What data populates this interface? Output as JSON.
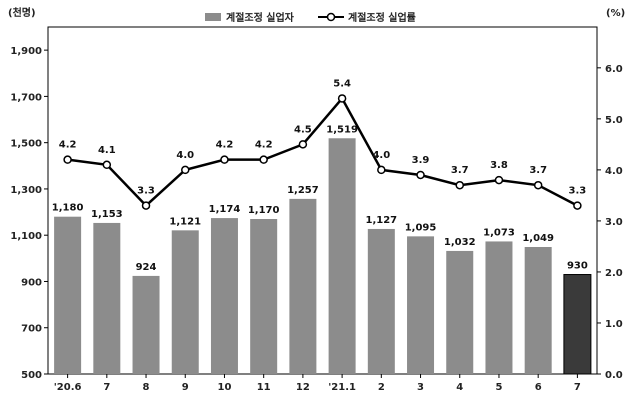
{
  "chart_data": {
    "type": "bar",
    "categories": [
      "'20.6",
      "7",
      "8",
      "9",
      "10",
      "11",
      "12",
      "'21.1",
      "2",
      "3",
      "4",
      "5",
      "6",
      "7"
    ],
    "series": [
      {
        "name": "계절조정 실업자",
        "type": "bar",
        "axis": "left",
        "values": [
          1180,
          1153,
          924,
          1121,
          1174,
          1170,
          1257,
          1519,
          1127,
          1095,
          1032,
          1073,
          1049,
          930
        ],
        "labels": [
          "1,180",
          "1,153",
          "924",
          "1,121",
          "1,174",
          "1,170",
          "1,257",
          "1,519",
          "1,127",
          "1,095",
          "1,032",
          "1,073",
          "1,049",
          "930"
        ],
        "color": "#8c8c8c",
        "highlight_color": "#3a3a3a",
        "highlight_index": 13
      },
      {
        "name": "계절조정 실업률",
        "type": "line",
        "axis": "right",
        "values": [
          4.2,
          4.1,
          3.3,
          4.0,
          4.2,
          4.2,
          4.5,
          5.4,
          4.0,
          3.9,
          3.7,
          3.8,
          3.7,
          3.3
        ],
        "labels": [
          "4.2",
          "4.1",
          "3.3",
          "4.0",
          "4.2",
          "4.2",
          "4.5",
          "5.4",
          "4.0",
          "3.9",
          "3.7",
          "3.8",
          "3.7",
          "3.3"
        ],
        "color": "#000000"
      }
    ],
    "y_left": {
      "unit": "(천명)",
      "ylim": [
        500,
        2000
      ],
      "ticks": [
        500,
        700,
        900,
        1100,
        1300,
        1500,
        1700,
        1900
      ],
      "tick_labels": [
        "500",
        "700",
        "900",
        "1,100",
        "1,300",
        "1,500",
        "1,700",
        "1,900"
      ]
    },
    "y_right": {
      "unit": "(%)",
      "ylim": [
        0,
        6.8
      ],
      "ticks": [
        0,
        1,
        2,
        3,
        4,
        5,
        6
      ],
      "tick_labels": [
        "0.0",
        "1.0",
        "2.0",
        "3.0",
        "4.0",
        "5.0",
        "6.0"
      ]
    },
    "grid": false,
    "legend_position": "top-center"
  }
}
